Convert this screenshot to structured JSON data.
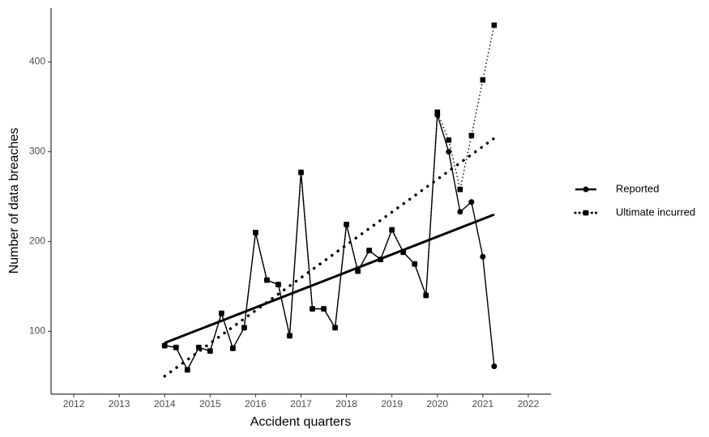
{
  "chart_data": {
    "type": "line",
    "x_label": "Accident quarters",
    "y_label": "Number of data breaches",
    "x": [
      2014,
      2014.25,
      2014.5,
      2014.75,
      2015,
      2015.25,
      2015.5,
      2015.75,
      2016,
      2016.25,
      2016.5,
      2016.75,
      2017,
      2017.25,
      2017.5,
      2017.75,
      2018,
      2018.25,
      2018.5,
      2018.75,
      2019,
      2019.25,
      2019.5,
      2019.75,
      2020,
      2020.25,
      2020.5,
      2020.75,
      2021,
      2021.25
    ],
    "series": [
      {
        "name": "Reported",
        "color": "#000000",
        "marker": "circle",
        "line_style": "solid",
        "values": [
          84,
          82,
          57,
          82,
          78,
          120,
          81,
          104,
          210,
          157,
          152,
          95,
          277,
          125,
          125,
          104,
          219,
          167,
          190,
          180,
          213,
          188,
          175,
          140,
          341,
          300,
          233,
          244,
          183,
          61
        ],
        "trend_x": [
          2014,
          2021.25
        ],
        "trend": [
          87,
          230
        ]
      },
      {
        "name": "Ultimate incurred",
        "color": "#000000",
        "marker": "square",
        "line_style": "dotted",
        "values": [
          84,
          82,
          57,
          82,
          78,
          120,
          81,
          104,
          210,
          157,
          152,
          95,
          277,
          125,
          125,
          104,
          219,
          167,
          190,
          180,
          213,
          188,
          175,
          140,
          344,
          313,
          258,
          318,
          380,
          441
        ],
        "trend_x": [
          2014,
          2021.25
        ],
        "trend": [
          50,
          315
        ]
      }
    ],
    "xlim": [
      2011.5,
      2022.5
    ],
    "xticks": [
      2012,
      2013,
      2014,
      2015,
      2016,
      2017,
      2018,
      2019,
      2020,
      2021,
      2022
    ],
    "ylim": [
      30,
      460
    ],
    "yticks": [
      100,
      200,
      300,
      400
    ],
    "grid": false,
    "legend_position": "right"
  }
}
